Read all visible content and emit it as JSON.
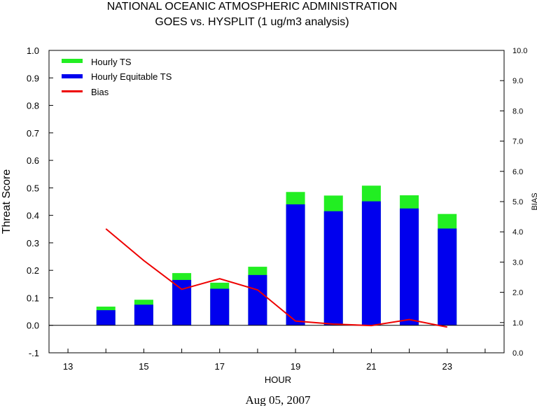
{
  "title": {
    "line1": "NATIONAL OCEANIC ATMOSPHERIC ADMINISTRATION",
    "line2": "GOES vs. HYSPLIT  (1 ug/m3 analysis)"
  },
  "date_label": "Aug 05, 2007",
  "colors": {
    "hourly_ts": "#22ee22",
    "equitable_ts": "#0000ee",
    "bias": "#ee0000",
    "axis": "#000000"
  },
  "chart_data": {
    "type": "bar",
    "xlabel": "HOUR",
    "ylabel": "Threat Score",
    "y2label": "BIAS",
    "xlim": [
      12.5,
      24.5
    ],
    "ylim": [
      -0.1,
      1.0
    ],
    "y2lim": [
      0.0,
      10.0
    ],
    "x_ticks": [
      13,
      14,
      15,
      16,
      17,
      18,
      19,
      20,
      21,
      22,
      23,
      24
    ],
    "x_tick_labels": [
      "13",
      "15",
      "17",
      "19",
      "21",
      "23"
    ],
    "y_tick_labels": [
      "1.0",
      "0.9",
      "0.8",
      "0.7",
      "0.6",
      "0.5",
      "0.4",
      "0.3",
      "0.2",
      "0.1",
      "0.0",
      "-.1"
    ],
    "y2_tick_labels": [
      "10.0",
      "9.0",
      "8.0",
      "7.0",
      "6.0",
      "5.0",
      "4.0",
      "3.0",
      "2.0",
      "1.0",
      "0.0"
    ],
    "categories": [
      14,
      15,
      16,
      17,
      18,
      19,
      20,
      21,
      22,
      23
    ],
    "series": [
      {
        "name": "Hourly TS",
        "axis": "left",
        "kind": "bar",
        "values": [
          0.068,
          0.093,
          0.19,
          0.155,
          0.213,
          0.485,
          0.472,
          0.508,
          0.473,
          0.405
        ]
      },
      {
        "name": "Hourly Equitable TS",
        "axis": "left",
        "kind": "bar",
        "values": [
          0.055,
          0.075,
          0.165,
          0.133,
          0.183,
          0.44,
          0.415,
          0.451,
          0.425,
          0.352
        ]
      },
      {
        "name": "Bias",
        "axis": "right",
        "kind": "line",
        "values": [
          4.1,
          3.05,
          2.1,
          2.45,
          2.08,
          1.05,
          0.95,
          0.9,
          1.1,
          0.85
        ]
      }
    ],
    "grid": false,
    "legend_position": "top-left"
  }
}
